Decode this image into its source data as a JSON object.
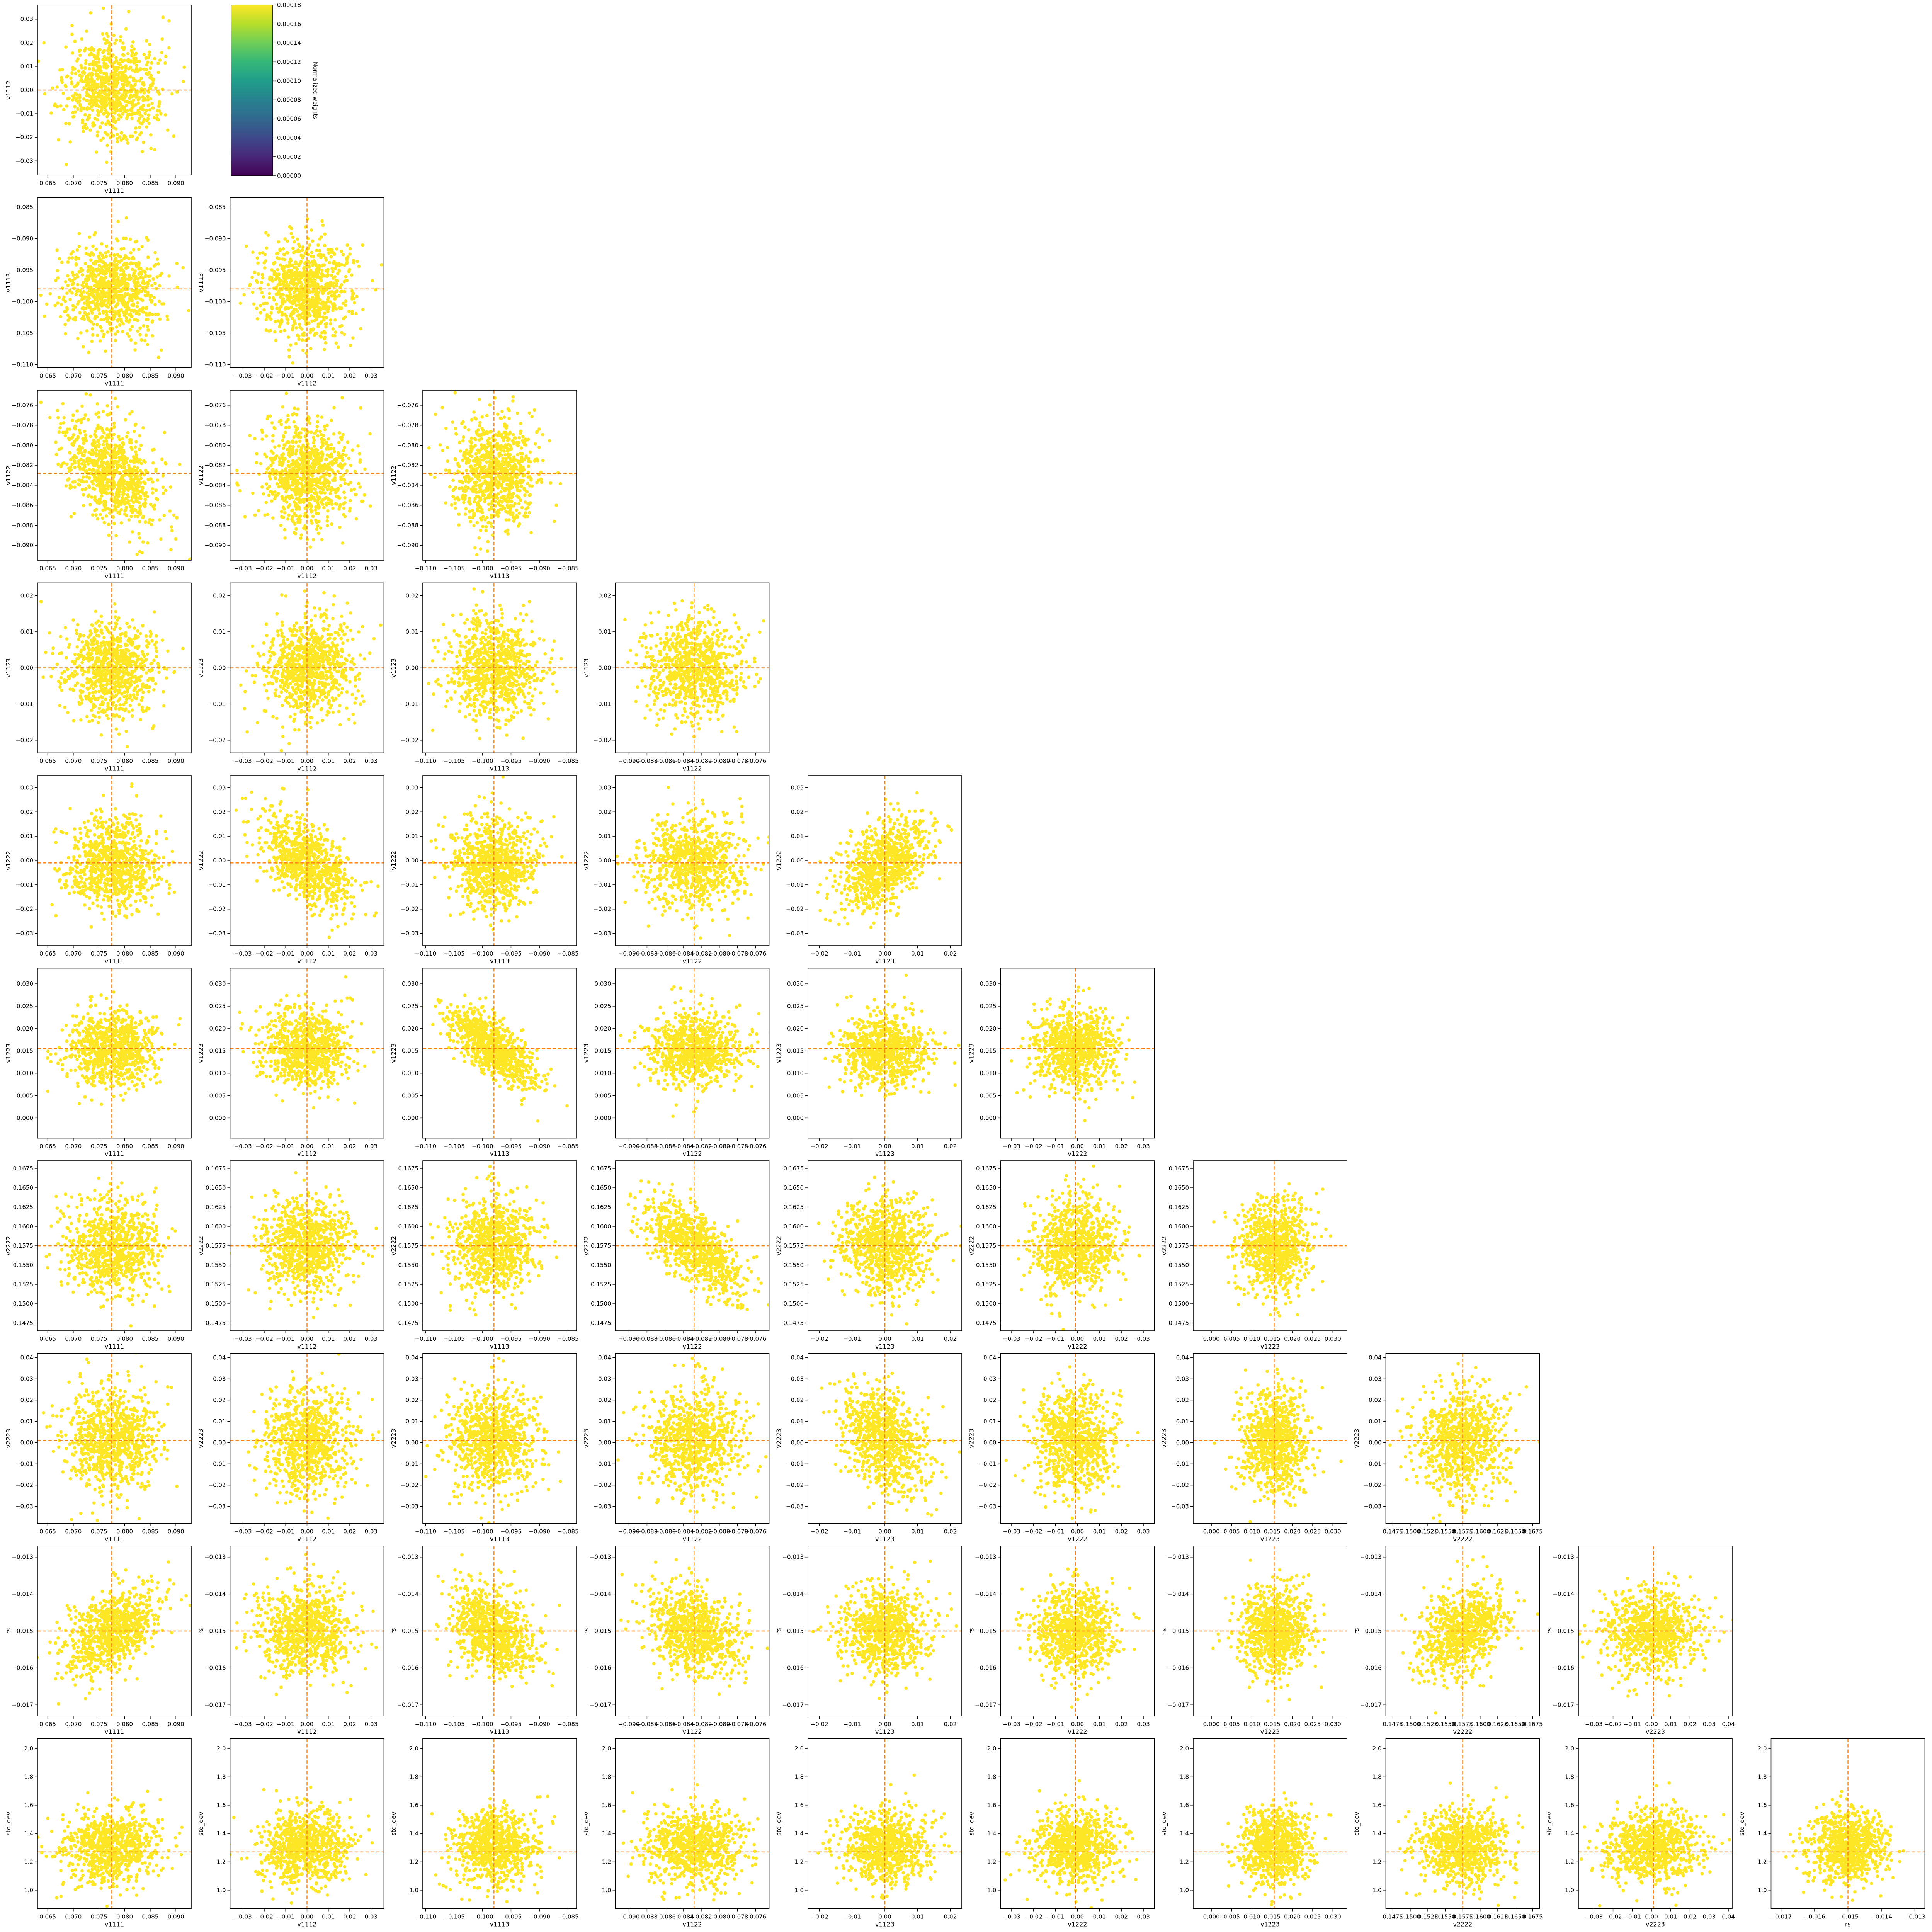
{
  "figure": {
    "type": "corner-plot",
    "marker_color": "#fde725",
    "truth_line_color": "#ff7f0e",
    "colorbar": {
      "label": "Normalized weights",
      "ticks": [
        "0.00000",
        "0.00002",
        "0.00004",
        "0.00006",
        "0.00008",
        "0.00010",
        "0.00012",
        "0.00014",
        "0.00016",
        "0.00018"
      ],
      "colormap": "viridis",
      "stops": [
        "#440154",
        "#482878",
        "#3e4989",
        "#31688e",
        "#26828e",
        "#1f9e89",
        "#35b779",
        "#6ece58",
        "#b5de2b",
        "#fde725"
      ]
    }
  },
  "chart_data": {
    "type": "scatter",
    "grid": false,
    "parameters": [
      {
        "name": "v1111",
        "truth": 0.0775,
        "mean": 0.0775,
        "std": 0.0045,
        "ticks": [
          "0.065",
          "0.070",
          "0.075",
          "0.080",
          "0.085",
          "0.090"
        ],
        "lim": [
          0.063,
          0.093
        ]
      },
      {
        "name": "v1112",
        "truth": 0.0,
        "mean": 0.0,
        "std": 0.0105,
        "ticks": [
          "−0.03",
          "−0.02",
          "−0.01",
          "0.00",
          "0.01",
          "0.02",
          "0.03"
        ],
        "lim": [
          -0.036,
          0.036
        ]
      },
      {
        "name": "v1113",
        "truth": -0.098,
        "mean": -0.098,
        "std": 0.0038,
        "ticks": [
          "−0.110",
          "−0.105",
          "−0.100",
          "−0.095",
          "−0.090",
          "−0.085"
        ],
        "lim": [
          -0.1105,
          -0.0835
        ]
      },
      {
        "name": "v1122",
        "truth": -0.0828,
        "mean": -0.0828,
        "std": 0.0027,
        "ticks": [
          "−0.090",
          "−0.088",
          "−0.086",
          "−0.084",
          "−0.082",
          "−0.080",
          "−0.078",
          "−0.076"
        ],
        "lim": [
          -0.0915,
          -0.0745
        ]
      },
      {
        "name": "v1123",
        "truth": 0.0,
        "mean": 0.0,
        "std": 0.0068,
        "ticks": [
          "−0.02",
          "−0.01",
          "0.00",
          "0.01",
          "0.02"
        ],
        "lim": [
          -0.0235,
          0.0235
        ]
      },
      {
        "name": "v1222",
        "truth": -0.001,
        "mean": -0.001,
        "std": 0.0095,
        "ticks": [
          "−0.03",
          "−0.02",
          "−0.01",
          "0.00",
          "0.01",
          "0.02",
          "0.03"
        ],
        "lim": [
          -0.035,
          0.035
        ]
      },
      {
        "name": "v1223",
        "truth": 0.0155,
        "mean": 0.0155,
        "std": 0.0043,
        "ticks": [
          "0.000",
          "0.005",
          "0.010",
          "0.015",
          "0.020",
          "0.025",
          "0.030"
        ],
        "lim": [
          -0.0045,
          0.0335
        ]
      },
      {
        "name": "v2222",
        "truth": 0.1575,
        "mean": 0.1575,
        "std": 0.0031,
        "ticks": [
          "0.1475",
          "0.1500",
          "0.1525",
          "0.1550",
          "0.1575",
          "0.1600",
          "0.1625",
          "0.1650",
          "0.1675"
        ],
        "lim": [
          0.1465,
          0.1685
        ]
      },
      {
        "name": "v2223",
        "truth": 0.001,
        "mean": 0.001,
        "std": 0.0125,
        "ticks": [
          "−0.03",
          "−0.02",
          "−0.01",
          "0.00",
          "0.01",
          "0.02",
          "0.03",
          "0.04"
        ],
        "lim": [
          -0.038,
          0.042
        ]
      },
      {
        "name": "rs",
        "truth": -0.015,
        "mean": -0.015,
        "std": 0.0006,
        "ticks": [
          "−0.017",
          "−0.016",
          "−0.015",
          "−0.014",
          "−0.013"
        ],
        "lim": [
          -0.0173,
          -0.0127
        ]
      },
      {
        "name": "std_dev",
        "truth": 1.27,
        "mean": 1.31,
        "std": 0.13,
        "ticks": [
          "1.0",
          "1.2",
          "1.4",
          "1.6",
          "1.8",
          "2.0"
        ],
        "lim": [
          0.87,
          2.07
        ]
      }
    ],
    "correlations": [
      {
        "x": "v1111",
        "y": "v1122",
        "r": -0.45
      },
      {
        "x": "v1112",
        "y": "v1222",
        "r": -0.55
      },
      {
        "x": "v1113",
        "y": "v1223",
        "r": -0.7
      },
      {
        "x": "v1123",
        "y": "v1222",
        "r": 0.45
      },
      {
        "x": "v1122",
        "y": "v2222",
        "r": -0.65
      },
      {
        "x": "v1123",
        "y": "v2223",
        "r": -0.3
      },
      {
        "x": "v1111",
        "y": "rs",
        "r": 0.5
      },
      {
        "x": "v1113",
        "y": "rs",
        "r": -0.3
      },
      {
        "x": "v1122",
        "y": "rs",
        "r": -0.25
      },
      {
        "x": "v2222",
        "y": "rs",
        "r": 0.35
      }
    ]
  }
}
